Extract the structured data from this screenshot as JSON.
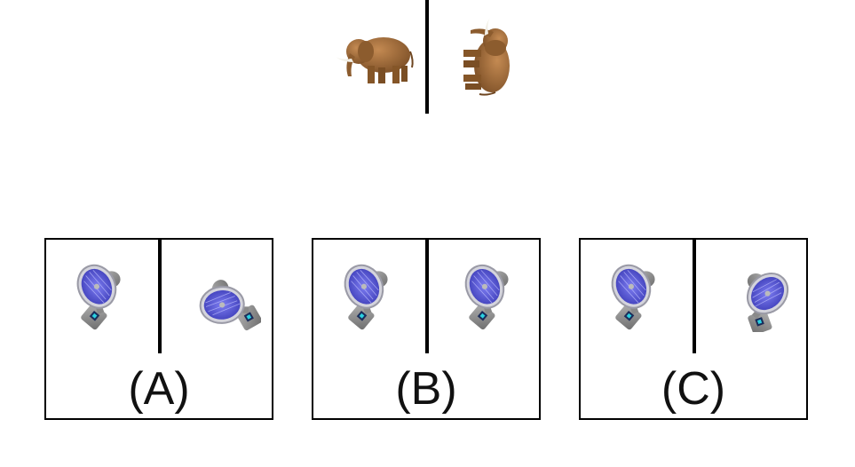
{
  "example": {
    "left_icon": "elephant-side-view-icon",
    "right_icon": "elephant-rotated-view-icon",
    "elephant_color": "#9b6a3a",
    "tusk_color": "#f2efe6"
  },
  "options": [
    {
      "label": "(A)",
      "left_icon": "desk-fan-icon",
      "right_icon": "desk-fan-rotated-icon"
    },
    {
      "label": "(B)",
      "left_icon": "desk-fan-icon",
      "right_icon": "desk-fan-icon"
    },
    {
      "label": "(C)",
      "left_icon": "desk-fan-icon",
      "right_icon": "desk-fan-tilted-icon"
    }
  ],
  "colors": {
    "fan_body": "#8a8a8a",
    "fan_blade": "#5a5ad0",
    "fan_ring": "#c8c8d4"
  }
}
